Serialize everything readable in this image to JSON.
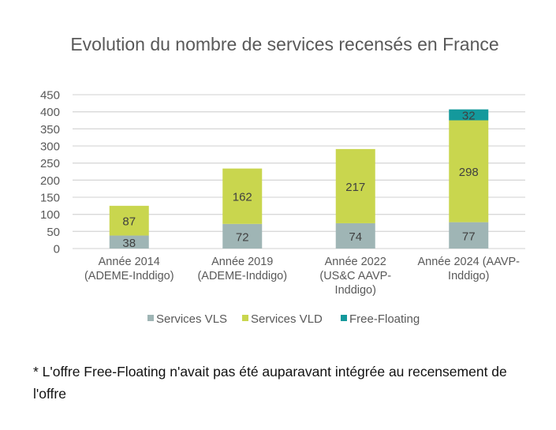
{
  "chart_data": {
    "type": "bar",
    "stacked": true,
    "title": "Evolution du nombre de services recensés en France",
    "categories": [
      [
        "Année 2014",
        "(ADEME-Inddigo)"
      ],
      [
        "Année 2019",
        "(ADEME-Inddigo)"
      ],
      [
        "Année 2022",
        "(US&C AAVP-",
        "Inddigo)"
      ],
      [
        "Année 2024 (AAVP-",
        "Inddigo)"
      ]
    ],
    "series": [
      {
        "name": "Services VLS",
        "color": "#9fb5b5",
        "values": [
          38,
          72,
          74,
          77
        ]
      },
      {
        "name": "Services VLD",
        "color": "#c9d64e",
        "values": [
          87,
          162,
          217,
          298
        ]
      },
      {
        "name": "Free-Floating",
        "color": "#14999c",
        "values": [
          0,
          0,
          0,
          32
        ]
      }
    ],
    "ylim": [
      0,
      450
    ],
    "yticks": [
      0,
      50,
      100,
      150,
      200,
      250,
      300,
      350,
      400,
      450
    ],
    "grid": true,
    "legend": "bottom",
    "data_labels": true
  },
  "footnote": "* L'offre Free-Floating n'avait pas été auparavant intégrée au recensement de l'offre"
}
